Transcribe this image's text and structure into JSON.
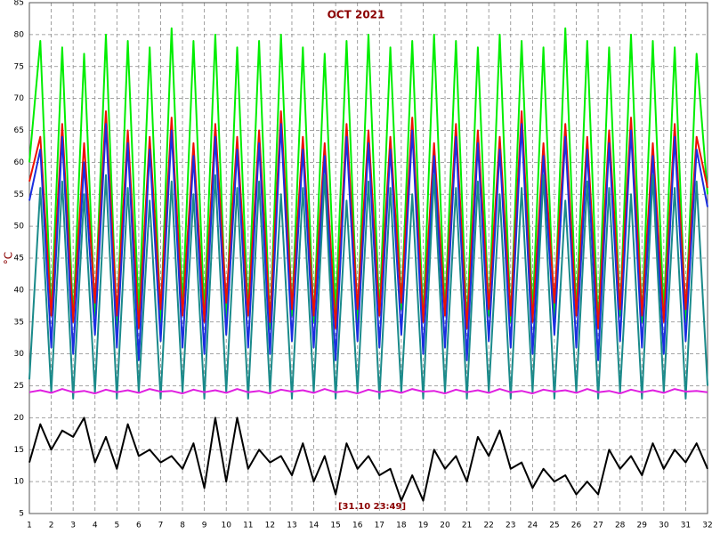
{
  "chart_data": {
    "type": "line",
    "title": "OCT 2021",
    "ylabel": "°C",
    "annotation": "[31.10 23:49]",
    "grid": true,
    "xlim": [
      1,
      32
    ],
    "ylim": [
      5,
      85
    ],
    "xticks": [
      1,
      2,
      3,
      4,
      5,
      6,
      7,
      8,
      9,
      10,
      11,
      12,
      13,
      14,
      15,
      16,
      17,
      18,
      19,
      20,
      21,
      22,
      23,
      24,
      25,
      26,
      27,
      28,
      29,
      30,
      31,
      32
    ],
    "yticks": [
      5,
      10,
      15,
      20,
      25,
      30,
      35,
      40,
      45,
      50,
      55,
      60,
      65,
      70,
      75,
      80,
      85
    ],
    "x": [
      1,
      1.5,
      2,
      2.5,
      3,
      3.5,
      4,
      4.5,
      5,
      5.5,
      6,
      6.5,
      7,
      7.5,
      8,
      8.5,
      9,
      9.5,
      10,
      10.5,
      11,
      11.5,
      12,
      12.5,
      13,
      13.5,
      14,
      14.5,
      15,
      15.5,
      16,
      16.5,
      17,
      17.5,
      18,
      18.5,
      19,
      19.5,
      20,
      20.5,
      21,
      21.5,
      22,
      22.5,
      23,
      23.5,
      24,
      24.5,
      25,
      25.5,
      26,
      26.5,
      27,
      27.5,
      28,
      28.5,
      29,
      29.5,
      30,
      30.5,
      31,
      31.5,
      32
    ],
    "series": [
      {
        "color": "#00ee00",
        "values": [
          60,
          79,
          36,
          78,
          35,
          77,
          36,
          80,
          34,
          79,
          36,
          78,
          35,
          81,
          37,
          79,
          36,
          80,
          35,
          78,
          36,
          79,
          34,
          80,
          36,
          78,
          35,
          77,
          36,
          79,
          35,
          80,
          36,
          78,
          37,
          79,
          35,
          80,
          36,
          79,
          34,
          78,
          36,
          80,
          35,
          79,
          36,
          78,
          35,
          81,
          36,
          79,
          34,
          78,
          36,
          80,
          35,
          79,
          36,
          78,
          35,
          77,
          55
        ]
      },
      {
        "color": "#ee1100",
        "values": [
          57,
          64,
          36,
          66,
          35,
          63,
          38,
          68,
          36,
          65,
          34,
          64,
          37,
          67,
          36,
          63,
          35,
          66,
          38,
          64,
          36,
          65,
          35,
          68,
          37,
          64,
          36,
          63,
          34,
          66,
          37,
          65,
          36,
          64,
          38,
          67,
          35,
          63,
          36,
          66,
          34,
          65,
          37,
          64,
          36,
          68,
          35,
          63,
          38,
          66,
          36,
          64,
          34,
          65,
          37,
          67,
          36,
          63,
          35,
          66,
          37,
          64,
          56
        ]
      },
      {
        "color": "#1a2ee0",
        "values": [
          54,
          62,
          31,
          64,
          30,
          60,
          33,
          66,
          31,
          63,
          29,
          62,
          32,
          65,
          31,
          61,
          30,
          64,
          33,
          62,
          31,
          63,
          30,
          66,
          32,
          62,
          31,
          61,
          29,
          64,
          32,
          63,
          31,
          62,
          33,
          65,
          30,
          61,
          31,
          64,
          29,
          63,
          32,
          62,
          31,
          66,
          30,
          61,
          33,
          64,
          31,
          62,
          29,
          63,
          32,
          65,
          31,
          61,
          30,
          64,
          32,
          62,
          53
        ]
      },
      {
        "color": "#1a8a8a",
        "values": [
          26,
          56,
          24,
          57,
          23,
          55,
          24,
          58,
          23,
          56,
          24,
          54,
          23,
          57,
          24,
          55,
          23,
          58,
          24,
          56,
          23,
          57,
          24,
          55,
          23,
          56,
          24,
          58,
          23,
          54,
          24,
          57,
          23,
          56,
          24,
          55,
          23,
          58,
          24,
          56,
          23,
          57,
          24,
          55,
          23,
          56,
          24,
          58,
          23,
          54,
          24,
          57,
          23,
          56,
          24,
          55,
          23,
          58,
          24,
          56,
          23,
          57,
          25
        ]
      },
      {
        "color": "#e020e0",
        "values": [
          24,
          24.3,
          23.9,
          24.5,
          24,
          24.2,
          23.8,
          24.4,
          24,
          24.3,
          23.9,
          24.5,
          24.1,
          24.2,
          23.8,
          24.4,
          24,
          24.3,
          23.9,
          24.5,
          24,
          24.2,
          23.8,
          24.4,
          24.1,
          24.3,
          23.9,
          24.5,
          24,
          24.2,
          23.8,
          24.4,
          24,
          24.3,
          23.9,
          24.5,
          24.1,
          24.2,
          23.8,
          24.4,
          24,
          24.3,
          23.9,
          24.5,
          24,
          24.2,
          23.8,
          24.4,
          24.1,
          24.3,
          23.9,
          24.5,
          24,
          24.2,
          23.8,
          24.4,
          24,
          24.3,
          23.9,
          24.5,
          24.1,
          24.2,
          24
        ]
      },
      {
        "color": "#000000",
        "values": [
          13,
          19,
          15,
          18,
          17,
          20,
          13,
          17,
          12,
          19,
          14,
          15,
          13,
          14,
          12,
          16,
          9,
          20,
          10,
          20,
          12,
          15,
          13,
          14,
          11,
          16,
          10,
          14,
          8,
          16,
          12,
          14,
          11,
          12,
          7,
          11,
          7,
          15,
          12,
          14,
          10,
          17,
          14,
          18,
          12,
          13,
          9,
          12,
          10,
          11,
          8,
          10,
          8,
          15,
          12,
          14,
          11,
          16,
          12,
          15,
          13,
          16,
          12
        ]
      }
    ]
  }
}
